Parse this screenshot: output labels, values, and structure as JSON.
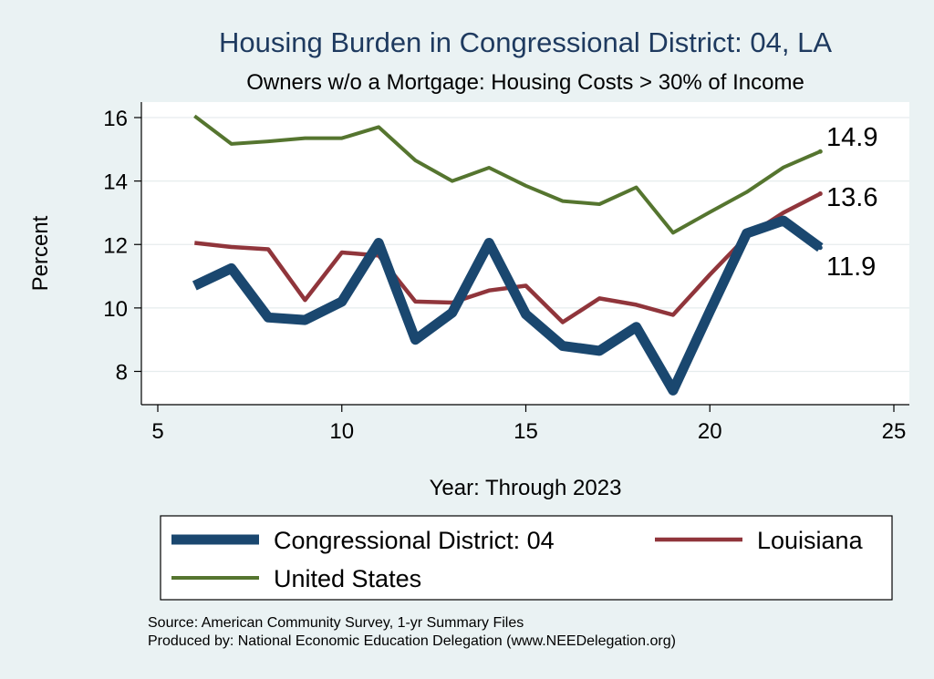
{
  "chart_data": {
    "type": "line",
    "title": "Housing Burden in Congressional District:  04, LA",
    "subtitle": "Owners w/o a Mortgage: Housing Costs > 30% of Income",
    "xlabel": "Year: Through 2023",
    "ylabel": "Percent",
    "xlim": [
      5,
      25
    ],
    "ylim": [
      7,
      16.5
    ],
    "xticks": [
      5,
      10,
      15,
      20,
      25
    ],
    "yticks": [
      8,
      10,
      12,
      14,
      16
    ],
    "grid": true,
    "legend_position": "bottom",
    "x": [
      6,
      7,
      8,
      9,
      10,
      11,
      12,
      13,
      14,
      15,
      16,
      17,
      18,
      19,
      20,
      21,
      22,
      23
    ],
    "series": [
      {
        "name": "Congressional District:  04",
        "color": "#1a476f",
        "values": [
          10.7,
          11.25,
          9.7,
          9.62,
          10.2,
          12.05,
          9.0,
          9.85,
          12.05,
          9.8,
          8.8,
          8.65,
          9.4,
          7.4,
          9.9,
          12.35,
          12.75,
          11.9
        ],
        "end_label": "11.9"
      },
      {
        "name": "Louisiana",
        "color": "#90353b",
        "values": [
          12.05,
          11.92,
          11.85,
          10.25,
          11.75,
          11.65,
          10.2,
          10.17,
          10.55,
          10.7,
          9.55,
          10.3,
          10.1,
          9.78,
          11.05,
          12.25,
          13.0,
          13.6
        ],
        "end_label": "13.6"
      },
      {
        "name": "United States",
        "color": "#55752f",
        "values": [
          16.05,
          15.17,
          15.25,
          15.35,
          15.35,
          15.7,
          14.65,
          14.0,
          14.42,
          13.85,
          13.37,
          13.27,
          13.8,
          12.37,
          13.02,
          13.65,
          14.43,
          14.93
        ],
        "end_label": "14.9"
      }
    ],
    "source_lines": [
      "Source: American Community Survey, 1-yr Summary Files",
      "Produced by: National Economic Education Delegation (www.NEEDelegation.org)"
    ]
  }
}
